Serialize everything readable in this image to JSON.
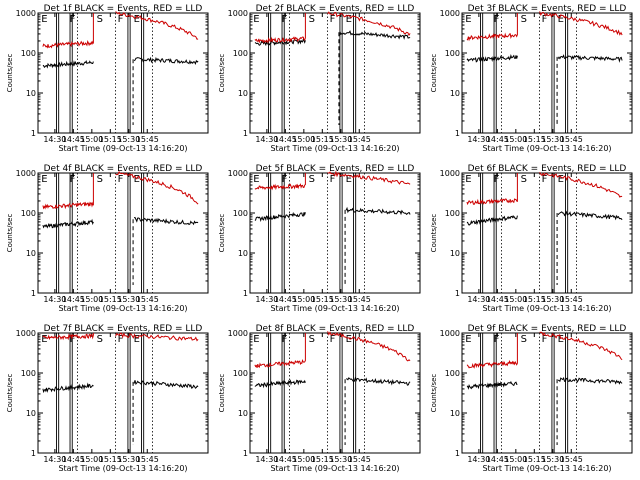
{
  "chart_data": [
    {
      "type": "line",
      "title": "Det 1f BLACK = Events, RED = LLD",
      "ylabel": "Counts/sec",
      "xlabel": "Start Time (09-Oct-13 14:16:20)",
      "yscale": "log",
      "ylim": [
        1,
        1000
      ],
      "y_ticks": [
        "1",
        "10",
        "100",
        "1000"
      ],
      "x_ticks": [
        "14:30",
        "14:45",
        "15:00",
        "15:15",
        "15:30",
        "15:45"
      ],
      "markers": [
        "E",
        "F",
        "S",
        "F",
        "E"
      ],
      "series": [
        {
          "name": "Events",
          "color": "#000000",
          "segments": [
            {
              "x": [
                4,
                45
              ],
              "y": [
                48,
                58
              ]
            },
            {
              "x": [
                78,
                130
              ],
              "y": [
                70,
                60
              ]
            }
          ]
        },
        {
          "name": "LLD",
          "color": "#cc0000",
          "segments": [
            {
              "x": [
                4,
                45
              ],
              "y": [
                150,
                180
              ],
              "rise": 1000
            },
            {
              "x": [
                63,
                130
              ],
              "y": [
                1000,
                230
              ]
            }
          ]
        }
      ]
    },
    {
      "type": "line",
      "title": "Det 2f BLACK = Events, RED = LLD",
      "ylabel": "Counts/sec",
      "xlabel": "Start Time (09-Oct-13 14:16:20)",
      "yscale": "log",
      "ylim": [
        1,
        1000
      ],
      "y_ticks": [
        "1",
        "10",
        "100",
        "1000"
      ],
      "x_ticks": [
        "14:30",
        "14:45",
        "15:00",
        "15:15",
        "15:30",
        "15:45"
      ],
      "markers": [
        "E",
        "F",
        "S",
        "F",
        "E"
      ],
      "series": [
        {
          "name": "Events",
          "color": "#000000",
          "segments": [
            {
              "x": [
                4,
                45
              ],
              "y": [
                170,
                200
              ]
            },
            {
              "x": [
                73,
                130
              ],
              "y": [
                330,
                250
              ]
            }
          ]
        },
        {
          "name": "LLD",
          "color": "#cc0000",
          "segments": [
            {
              "x": [
                4,
                45
              ],
              "y": [
                200,
                230
              ],
              "rise": 1000
            },
            {
              "x": [
                63,
                130
              ],
              "y": [
                1000,
                290
              ]
            }
          ]
        }
      ]
    },
    {
      "type": "line",
      "title": "Det 3f BLACK = Events, RED = LLD",
      "ylabel": "Counts/sec",
      "xlabel": "Start Time (09-Oct-13 14:16:20)",
      "yscale": "log",
      "ylim": [
        1,
        1000
      ],
      "y_ticks": [
        "1",
        "10",
        "100",
        "1000"
      ],
      "x_ticks": [
        "14:30",
        "14:45",
        "15:00",
        "15:15",
        "15:30",
        "15:45"
      ],
      "markers": [
        "E",
        "F",
        "S",
        "F",
        "E"
      ],
      "series": [
        {
          "name": "Events",
          "color": "#000000",
          "segments": [
            {
              "x": [
                4,
                45
              ],
              "y": [
                65,
                80
              ]
            },
            {
              "x": [
                78,
                130
              ],
              "y": [
                80,
                70
              ]
            }
          ]
        },
        {
          "name": "LLD",
          "color": "#cc0000",
          "segments": [
            {
              "x": [
                4,
                45
              ],
              "y": [
                240,
                280
              ],
              "rise": 1000
            },
            {
              "x": [
                63,
                130
              ],
              "y": [
                1000,
                300
              ]
            }
          ]
        }
      ]
    },
    {
      "type": "line",
      "title": "Det 4f BLACK = Events, RED = LLD",
      "ylabel": "Counts/sec",
      "xlabel": "Start Time (09-Oct-13 14:16:20)",
      "yscale": "log",
      "ylim": [
        1,
        1000
      ],
      "y_ticks": [
        "1",
        "10",
        "100",
        "1000"
      ],
      "x_ticks": [
        "14:30",
        "14:45",
        "15:00",
        "15:15",
        "15:30",
        "15:45"
      ],
      "markers": [
        "E",
        "F",
        "S",
        "F",
        "E"
      ],
      "series": [
        {
          "name": "Events",
          "color": "#000000",
          "segments": [
            {
              "x": [
                4,
                45
              ],
              "y": [
                45,
                60
              ]
            },
            {
              "x": [
                78,
                130
              ],
              "y": [
                70,
                55
              ]
            }
          ]
        },
        {
          "name": "LLD",
          "color": "#cc0000",
          "segments": [
            {
              "x": [
                4,
                45
              ],
              "y": [
                140,
                170
              ],
              "rise": 1000
            },
            {
              "x": [
                63,
                130
              ],
              "y": [
                1000,
                180
              ]
            }
          ]
        }
      ]
    },
    {
      "type": "line",
      "title": "Det 5f BLACK = Events, RED = LLD",
      "ylabel": "Counts/sec",
      "xlabel": "Start Time (09-Oct-13 14:16:20)",
      "yscale": "log",
      "ylim": [
        1,
        1000
      ],
      "y_ticks": [
        "1",
        "10",
        "100",
        "1000"
      ],
      "x_ticks": [
        "14:30",
        "14:45",
        "15:00",
        "15:15",
        "15:30",
        "15:45"
      ],
      "markers": [
        "E",
        "F",
        "S",
        "F",
        "E"
      ],
      "series": [
        {
          "name": "Events",
          "color": "#000000",
          "segments": [
            {
              "x": [
                4,
                45
              ],
              "y": [
                70,
                95
              ]
            },
            {
              "x": [
                78,
                130
              ],
              "y": [
                120,
                100
              ]
            }
          ]
        },
        {
          "name": "LLD",
          "color": "#cc0000",
          "segments": [
            {
              "x": [
                4,
                45
              ],
              "y": [
                420,
                480
              ],
              "rise": 1000
            },
            {
              "x": [
                63,
                130
              ],
              "y": [
                1000,
                520
              ]
            }
          ]
        }
      ]
    },
    {
      "type": "line",
      "title": "Det 6f BLACK = Events, RED = LLD",
      "ylabel": "Counts/sec",
      "xlabel": "Start Time (09-Oct-13 14:16:20)",
      "yscale": "log",
      "ylim": [
        1,
        1000
      ],
      "y_ticks": [
        "1",
        "10",
        "100",
        "1000"
      ],
      "x_ticks": [
        "14:30",
        "14:45",
        "15:00",
        "15:15",
        "15:30",
        "15:45"
      ],
      "markers": [
        "E",
        "F",
        "S",
        "F",
        "E"
      ],
      "series": [
        {
          "name": "Events",
          "color": "#000000",
          "segments": [
            {
              "x": [
                4,
                45
              ],
              "y": [
                55,
                80
              ]
            },
            {
              "x": [
                78,
                130
              ],
              "y": [
                100,
                75
              ]
            }
          ]
        },
        {
          "name": "LLD",
          "color": "#cc0000",
          "segments": [
            {
              "x": [
                4,
                45
              ],
              "y": [
                180,
                210
              ],
              "rise": 1000
            },
            {
              "x": [
                63,
                130
              ],
              "y": [
                1000,
                240
              ]
            }
          ]
        }
      ]
    },
    {
      "type": "line",
      "title": "Det 7f BLACK = Events, RED = LLD",
      "ylabel": "Counts/sec",
      "xlabel": "Start Time (09-Oct-13 14:16:20)",
      "yscale": "log",
      "ylim": [
        1,
        1000
      ],
      "y_ticks": [
        "1",
        "10",
        "100",
        "1000"
      ],
      "x_ticks": [
        "14:30",
        "14:45",
        "15:00",
        "15:15",
        "15:30",
        "15:45"
      ],
      "markers": [
        "E",
        "F",
        "S",
        "F",
        "E"
      ],
      "series": [
        {
          "name": "Events",
          "color": "#000000",
          "segments": [
            {
              "x": [
                4,
                45
              ],
              "y": [
                38,
                48
              ]
            },
            {
              "x": [
                78,
                130
              ],
              "y": [
                60,
                45
              ]
            }
          ]
        },
        {
          "name": "LLD",
          "color": "#cc0000",
          "segments": [
            {
              "x": [
                4,
                45
              ],
              "y": [
                750,
                850
              ],
              "rise": 1000
            },
            {
              "x": [
                63,
                130
              ],
              "y": [
                900,
                700
              ]
            }
          ]
        }
      ]
    },
    {
      "type": "line",
      "title": "Det 8f BLACK = Events, RED = LLD",
      "ylabel": "Counts/sec",
      "xlabel": "Start Time (09-Oct-13 14:16:20)",
      "yscale": "log",
      "ylim": [
        1,
        1000
      ],
      "y_ticks": [
        "1",
        "10",
        "100",
        "1000"
      ],
      "x_ticks": [
        "14:30",
        "14:45",
        "15:00",
        "15:15",
        "15:30",
        "15:45"
      ],
      "markers": [
        "E",
        "F",
        "S",
        "F",
        "E"
      ],
      "series": [
        {
          "name": "Events",
          "color": "#000000",
          "segments": [
            {
              "x": [
                4,
                45
              ],
              "y": [
                48,
                62
              ]
            },
            {
              "x": [
                78,
                130
              ],
              "y": [
                70,
                55
              ]
            }
          ]
        },
        {
          "name": "LLD",
          "color": "#cc0000",
          "segments": [
            {
              "x": [
                4,
                45
              ],
              "y": [
                150,
                190
              ],
              "rise": 1000
            },
            {
              "x": [
                63,
                130
              ],
              "y": [
                1000,
                200
              ]
            }
          ]
        }
      ]
    },
    {
      "type": "line",
      "title": "Det 9f BLACK = Events, RED = LLD",
      "ylabel": "Counts/sec",
      "xlabel": "Start Time (09-Oct-13 14:16:20)",
      "yscale": "log",
      "ylim": [
        1,
        1000
      ],
      "y_ticks": [
        "1",
        "10",
        "100",
        "1000"
      ],
      "x_ticks": [
        "14:30",
        "14:45",
        "15:00",
        "15:15",
        "15:30",
        "15:45"
      ],
      "markers": [
        "E",
        "F",
        "S",
        "F",
        "E"
      ],
      "series": [
        {
          "name": "Events",
          "color": "#000000",
          "segments": [
            {
              "x": [
                4,
                45
              ],
              "y": [
                45,
                55
              ]
            },
            {
              "x": [
                78,
                130
              ],
              "y": [
                70,
                60
              ]
            }
          ]
        },
        {
          "name": "LLD",
          "color": "#cc0000",
          "segments": [
            {
              "x": [
                4,
                45
              ],
              "y": [
                150,
                180
              ],
              "rise": 1000
            },
            {
              "x": [
                63,
                130
              ],
              "y": [
                1000,
                230
              ]
            }
          ]
        }
      ]
    }
  ]
}
